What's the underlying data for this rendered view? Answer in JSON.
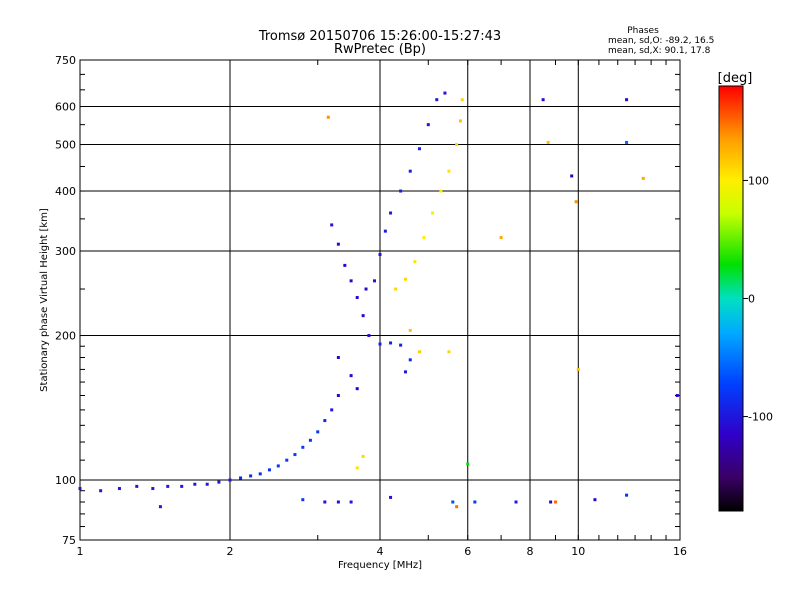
{
  "chart_data": {
    "type": "scatter",
    "title": "Tromsø 20150706 15:26:00-15:27:43",
    "subtitle": "RwPretec (Bp)",
    "xlabel": "Frequency [MHz]",
    "ylabel": "Stationary phase Virtual Height [km]",
    "x_scale": "log",
    "y_scale": "log",
    "xlim": [
      1,
      16
    ],
    "ylim": [
      75,
      750
    ],
    "x_ticks": [
      "1",
      "2",
      "4",
      "6",
      "8",
      "10",
      "16"
    ],
    "x_tick_values": [
      1,
      2,
      4,
      6,
      8,
      10,
      16
    ],
    "y_ticks": [
      "75",
      "100",
      "200",
      "300",
      "400",
      "500",
      "600",
      "750"
    ],
    "y_tick_values": [
      75,
      100,
      200,
      300,
      400,
      500,
      600,
      750
    ],
    "grid": true,
    "stats": {
      "heading": "Phases",
      "line_o": "mean, sd,O: -89.2, 16.5",
      "line_x": "mean, sd,X:  90.1, 17.8"
    },
    "colorbar": {
      "label": "[deg]",
      "ticks": [
        "100",
        "0",
        "-100"
      ],
      "tick_values": [
        100,
        0,
        -100
      ],
      "range": [
        -180,
        180
      ]
    },
    "series": [
      {
        "points": [
          [
            1.0,
            96,
            -100
          ],
          [
            1.1,
            95,
            -100
          ],
          [
            1.2,
            96,
            -100
          ],
          [
            1.3,
            97,
            -100
          ],
          [
            1.4,
            96,
            -100
          ],
          [
            1.5,
            97,
            -100
          ],
          [
            1.6,
            97,
            -100
          ],
          [
            1.7,
            98,
            -100
          ],
          [
            1.8,
            98,
            -100
          ],
          [
            1.9,
            99,
            -100
          ],
          [
            2.0,
            100,
            -100
          ],
          [
            2.1,
            101,
            -90
          ],
          [
            2.2,
            102,
            -90
          ],
          [
            2.3,
            103,
            -85
          ],
          [
            2.4,
            105,
            -85
          ],
          [
            2.5,
            107,
            -80
          ],
          [
            2.6,
            110,
            -80
          ],
          [
            2.7,
            113,
            -75
          ],
          [
            2.8,
            117,
            -75
          ],
          [
            2.9,
            121,
            -80
          ],
          [
            3.0,
            126,
            -80
          ],
          [
            3.1,
            133,
            -90
          ],
          [
            3.2,
            140,
            -100
          ],
          [
            3.3,
            150,
            -110
          ],
          [
            3.2,
            340,
            -105
          ],
          [
            3.3,
            310,
            -110
          ],
          [
            3.4,
            280,
            -112
          ],
          [
            3.5,
            260,
            -112
          ],
          [
            3.6,
            240,
            -110
          ],
          [
            3.7,
            220,
            -110
          ],
          [
            3.8,
            200,
            -108
          ],
          [
            3.3,
            180,
            -112
          ],
          [
            3.5,
            165,
            -115
          ],
          [
            3.6,
            155,
            -115
          ],
          [
            3.75,
            250,
            -110
          ],
          [
            3.9,
            260,
            -105
          ],
          [
            4.0,
            295,
            -100
          ],
          [
            4.1,
            330,
            -100
          ],
          [
            4.2,
            360,
            -98
          ],
          [
            4.4,
            400,
            -95
          ],
          [
            4.6,
            440,
            -95
          ],
          [
            4.8,
            490,
            -95
          ],
          [
            5.0,
            550,
            -100
          ],
          [
            5.2,
            620,
            -100
          ],
          [
            5.4,
            640,
            -105
          ],
          [
            4.0,
            192,
            -95
          ],
          [
            4.2,
            193,
            -95
          ],
          [
            4.4,
            191,
            -95
          ],
          [
            4.6,
            178,
            -90
          ],
          [
            4.5,
            168,
            -100
          ],
          [
            1.45,
            88,
            -100
          ],
          [
            3.1,
            90,
            -105
          ],
          [
            3.3,
            90,
            -105
          ],
          [
            3.5,
            90,
            -100
          ],
          [
            2.8,
            91,
            -80
          ],
          [
            4.2,
            92,
            -105
          ],
          [
            5.6,
            90,
            -70
          ],
          [
            6.2,
            90,
            -80
          ],
          [
            7.5,
            90,
            -100
          ],
          [
            8.8,
            90,
            -110
          ],
          [
            10.8,
            91,
            -110
          ],
          [
            12.5,
            93,
            -85
          ],
          [
            8.5,
            620,
            -110
          ],
          [
            9.7,
            430,
            -120
          ],
          [
            12.5,
            620,
            -110
          ],
          [
            12.5,
            505,
            -60
          ],
          [
            15.8,
            150,
            -120
          ]
        ]
      },
      {
        "points": [
          [
            4.3,
            250,
            110
          ],
          [
            4.5,
            262,
            110
          ],
          [
            4.7,
            285,
            105
          ],
          [
            4.9,
            320,
            100
          ],
          [
            5.1,
            360,
            95
          ],
          [
            5.3,
            400,
            100
          ],
          [
            5.5,
            440,
            105
          ],
          [
            5.7,
            500,
            110
          ],
          [
            5.8,
            560,
            120
          ],
          [
            5.85,
            620,
            110
          ],
          [
            4.6,
            205,
            120
          ],
          [
            4.8,
            185,
            115
          ],
          [
            5.5,
            185,
            110
          ],
          [
            3.7,
            112,
            110
          ],
          [
            3.6,
            106,
            105
          ],
          [
            5.7,
            88,
            150
          ],
          [
            6.0,
            108,
            30
          ],
          [
            7.0,
            320,
            130
          ],
          [
            8.7,
            505,
            120
          ],
          [
            9.9,
            380,
            140
          ],
          [
            10.0,
            170,
            120
          ],
          [
            13.5,
            425,
            130
          ],
          [
            3.15,
            570,
            140
          ],
          [
            9.0,
            90,
            150
          ]
        ]
      }
    ]
  }
}
